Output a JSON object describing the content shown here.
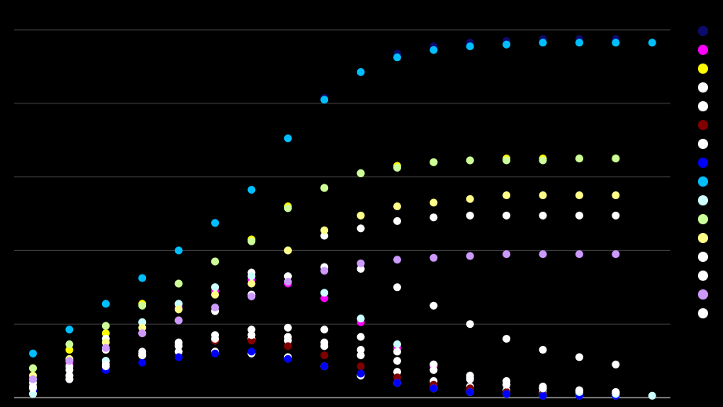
{
  "chart_data": {
    "type": "scatter",
    "title": "",
    "xlabel": "",
    "ylabel": "",
    "xlim": [
      0,
      17.5
    ],
    "ylim": [
      0,
      100
    ],
    "grid": "horizontal",
    "gridlines_y": [
      0,
      20,
      40,
      60,
      80,
      100
    ],
    "legend_position": "right",
    "background": "#000000",
    "grid_color": "#444444",
    "series": [
      {
        "color": "#0b0b6e",
        "x": [
          1,
          2,
          3,
          4,
          5,
          6,
          7,
          8,
          9,
          10,
          11,
          12,
          13,
          14,
          15,
          16,
          17
        ],
        "y": [
          12,
          18.5,
          25.5,
          32.5,
          40,
          47.5,
          56.5,
          70.5,
          81.5,
          88.5,
          93.5,
          95.5,
          96.5,
          97,
          97.5,
          97.5,
          97.5
        ]
      },
      {
        "color": "#ff00ff",
        "x": [
          1,
          2,
          3,
          4,
          5,
          6,
          7,
          8,
          9,
          10,
          11,
          12,
          13,
          14,
          15,
          16,
          17
        ],
        "y": [
          5,
          9,
          13.5,
          17.5,
          24.5,
          29,
          32,
          31,
          27,
          20.5,
          13.5,
          8.5,
          5,
          3.5,
          2.5,
          1.5,
          1
        ]
      },
      {
        "color": "#ffff00",
        "x": [
          1,
          2,
          3,
          4,
          5,
          6,
          7,
          8,
          9,
          10,
          11,
          12,
          13,
          14,
          15,
          16,
          17
        ],
        "y": [
          8,
          13,
          17.5,
          25.5,
          31,
          37,
          43,
          52,
          57,
          61,
          63,
          64,
          64.5,
          65,
          65,
          65,
          65
        ]
      },
      {
        "color": "#ffffff",
        "x": [
          1,
          2,
          3,
          4,
          5,
          6,
          7,
          8,
          9,
          10,
          11,
          12,
          13,
          14,
          15,
          16,
          17
        ],
        "y": [
          1,
          6,
          10,
          12.5,
          14.5,
          15.5,
          16,
          15.5,
          14,
          11.5,
          7,
          4.5,
          3,
          2,
          1.5,
          1,
          1
        ]
      },
      {
        "color": "#ffffff",
        "x": [
          1,
          2,
          3,
          4,
          5,
          6,
          7,
          8,
          9,
          10,
          11,
          12,
          13,
          14,
          15,
          16,
          17
        ],
        "y": [
          5,
          10,
          16,
          20.5,
          25.5,
          30,
          34,
          40,
          44,
          46,
          48,
          49,
          49.5,
          49.5,
          49.5,
          49.5,
          49.5
        ]
      },
      {
        "color": "#800000",
        "x": [
          1,
          2,
          3,
          4,
          5,
          6,
          7,
          8,
          9,
          10,
          11,
          12,
          13,
          14,
          15,
          16,
          17
        ],
        "y": [
          3,
          5,
          8,
          12,
          14.5,
          15.5,
          15.5,
          14,
          11.5,
          8.5,
          5.5,
          3.5,
          2.5,
          1.5,
          1,
          1,
          0.5
        ]
      },
      {
        "color": "#ffffff",
        "x": [
          1,
          2,
          3,
          4,
          5,
          6,
          7,
          8,
          9,
          10,
          11,
          12,
          13,
          14,
          15,
          16,
          17
        ],
        "y": [
          5,
          7.5,
          10,
          11.5,
          12.5,
          12.5,
          12,
          11,
          8.5,
          6,
          4,
          2.5,
          1.5,
          1,
          0.5,
          0.5,
          0.5
        ]
      },
      {
        "color": "#0000ff",
        "x": [
          1,
          2,
          3,
          4,
          5,
          6,
          7,
          8,
          9,
          10,
          11,
          12,
          13,
          14,
          15,
          16,
          17
        ],
        "y": [
          2,
          5,
          7.5,
          9.5,
          11,
          12,
          12.5,
          10.5,
          8.5,
          6.5,
          4,
          2.5,
          1.5,
          1,
          0.5,
          0.5,
          0.5
        ]
      },
      {
        "color": "#00bfff",
        "x": [
          1,
          2,
          3,
          4,
          5,
          6,
          7,
          8,
          9,
          10,
          11,
          12,
          13,
          14,
          15,
          16,
          17,
          18
        ],
        "y": [
          12,
          18.5,
          25.5,
          32.5,
          40,
          47.5,
          56.5,
          70.5,
          81,
          88.5,
          92.5,
          94.5,
          95.5,
          96,
          96.5,
          96.5,
          96.5,
          96.5
        ]
      },
      {
        "color": "#ccffff",
        "x": [
          1,
          2,
          3,
          4,
          5,
          6,
          7,
          8,
          9,
          10,
          11,
          12,
          13,
          14,
          15,
          16,
          17,
          18
        ],
        "y": [
          1,
          5,
          10,
          20.5,
          25.5,
          30,
          33,
          33,
          28.5,
          21.5,
          14.5,
          9,
          5.5,
          3.5,
          2.5,
          1.5,
          1,
          0.5
        ]
      },
      {
        "color": "#ccff99",
        "x": [
          1,
          2,
          3,
          4,
          5,
          6,
          7,
          8,
          9,
          10,
          11,
          12,
          13,
          14,
          15,
          16,
          17
        ],
        "y": [
          8,
          14.5,
          19.5,
          25,
          31,
          37,
          42.5,
          51.5,
          57,
          61,
          62.5,
          64,
          64.5,
          64.5,
          64.5,
          65,
          65
        ]
      },
      {
        "color": "#ffff88",
        "x": [
          1,
          2,
          3,
          4,
          5,
          6,
          7,
          8,
          9,
          10,
          11,
          12,
          13,
          14,
          15,
          16,
          17
        ],
        "y": [
          6,
          10.5,
          15,
          19,
          24,
          28,
          31,
          40,
          45.5,
          49.5,
          52,
          53,
          54,
          55,
          55,
          55,
          55
        ]
      },
      {
        "color": "#ffffff",
        "x": [
          1,
          2,
          3,
          4,
          5,
          6,
          7,
          8,
          9,
          10,
          11,
          12,
          13,
          14,
          15,
          16,
          17
        ],
        "y": [
          4,
          8.5,
          13,
          17.5,
          21,
          23.5,
          28,
          33,
          35.5,
          35,
          30,
          25,
          20,
          16,
          13,
          11,
          9
        ]
      },
      {
        "color": "#ffffff",
        "x": [
          1,
          2,
          3,
          4,
          5,
          6,
          7,
          8,
          9,
          10,
          11,
          12,
          13,
          14,
          15,
          16,
          17
        ],
        "y": [
          3,
          6,
          9,
          12,
          15,
          17,
          18.5,
          19,
          18.5,
          16.5,
          12.5,
          9,
          6,
          4.5,
          3,
          2,
          1.5
        ]
      },
      {
        "color": "#cc99ff",
        "x": [
          1,
          2,
          3,
          4,
          5,
          6,
          7,
          8,
          9,
          10,
          11,
          12,
          13,
          14,
          15,
          16,
          17
        ],
        "y": [
          5,
          10,
          13.5,
          17.5,
          21,
          24.5,
          27.5,
          31.5,
          34.5,
          36.5,
          37.5,
          38,
          38.5,
          39,
          39,
          39,
          39
        ]
      },
      {
        "color": "#ffffff",
        "x": [
          1,
          2,
          3,
          4,
          5,
          6,
          7,
          8,
          9,
          10,
          11,
          12,
          13,
          14,
          15,
          16,
          17
        ],
        "y": [
          2.5,
          5,
          8.5,
          11.5,
          14,
          16,
          17,
          16.5,
          15,
          13,
          10,
          7.5,
          5,
          3.5,
          2.5,
          2,
          1.5
        ]
      }
    ]
  }
}
